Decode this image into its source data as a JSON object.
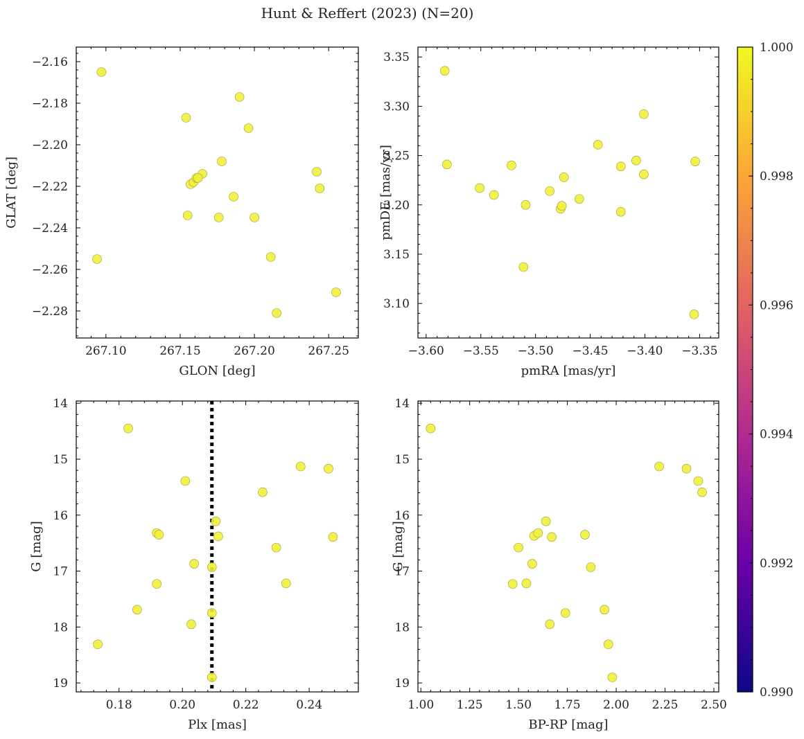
{
  "figure": {
    "title": "Hunt & Reffert (2023) (N=20)",
    "point_color": "#f0f921",
    "colormap": "plasma"
  },
  "colorbar": {
    "range": [
      0.99,
      1.0
    ],
    "ticks": [
      0.99,
      0.992,
      0.994,
      0.996,
      0.998,
      1.0
    ],
    "tick_labels": [
      "0.990",
      "0.992",
      "0.994",
      "0.996",
      "0.998",
      "1.000"
    ],
    "stops": [
      "#0d0887",
      "#6a00a8",
      "#b12a90",
      "#e16462",
      "#fca636",
      "#f0f921"
    ]
  },
  "chart_data": [
    {
      "type": "scatter",
      "id": "p1",
      "xlabel": "GLON [deg]",
      "ylabel": "GLAT [deg]",
      "xlim": [
        267.08,
        267.27
      ],
      "ylim": [
        -2.293,
        -2.153
      ],
      "xticks": [
        267.1,
        267.15,
        267.2,
        267.25
      ],
      "xtick_labels": [
        "267.10",
        "267.15",
        "267.20",
        "267.25"
      ],
      "yticks": [
        -2.28,
        -2.26,
        -2.24,
        -2.22,
        -2.2,
        -2.18,
        -2.16
      ],
      "ytick_labels": [
        "−2.28",
        "−2.26",
        "−2.24",
        "−2.22",
        "−2.20",
        "−2.18",
        "−2.16"
      ],
      "x": [
        267.097,
        267.094,
        267.154,
        267.155,
        267.157,
        267.159,
        267.161,
        267.165,
        267.176,
        267.178,
        267.186,
        267.19,
        267.196,
        267.2,
        267.211,
        267.215,
        267.242,
        267.244,
        267.255,
        267.162
      ],
      "y": [
        -2.165,
        -2.255,
        -2.187,
        -2.234,
        -2.219,
        -2.218,
        -2.216,
        -2.214,
        -2.235,
        -2.208,
        -2.225,
        -2.177,
        -2.192,
        -2.235,
        -2.254,
        -2.281,
        -2.213,
        -2.221,
        -2.271,
        -2.216
      ]
    },
    {
      "type": "scatter",
      "id": "p2",
      "xlabel": "pmRA [mas/yr]",
      "ylabel": "pmDE [mas/yr]",
      "xlim": [
        -3.6075,
        -3.3325
      ],
      "ylim": [
        3.065,
        3.36
      ],
      "xticks": [
        -3.6,
        -3.55,
        -3.5,
        -3.45,
        -3.4,
        -3.35
      ],
      "xtick_labels": [
        "−3.60",
        "−3.55",
        "−3.50",
        "−3.45",
        "−3.40",
        "−3.35"
      ],
      "yticks": [
        3.1,
        3.15,
        3.2,
        3.25,
        3.3,
        3.35
      ],
      "ytick_labels": [
        "3.10",
        "3.15",
        "3.20",
        "3.25",
        "3.30",
        "3.35"
      ],
      "x": [
        -3.583,
        -3.581,
        -3.551,
        -3.538,
        -3.522,
        -3.511,
        -3.509,
        -3.487,
        -3.477,
        -3.476,
        -3.474,
        -3.46,
        -3.443,
        -3.422,
        -3.422,
        -3.408,
        -3.401,
        -3.401,
        -3.355,
        -3.354
      ],
      "y": [
        3.336,
        3.241,
        3.217,
        3.21,
        3.24,
        3.137,
        3.2,
        3.214,
        3.196,
        3.199,
        3.228,
        3.206,
        3.261,
        3.239,
        3.193,
        3.245,
        3.292,
        3.231,
        3.089,
        3.244
      ]
    },
    {
      "type": "scatter",
      "id": "p3",
      "xlabel": "Plx [mas]",
      "ylabel": "G [mag]",
      "xlim": [
        0.1665,
        0.2555
      ],
      "ylim": [
        19.16,
        13.96
      ],
      "xticks": [
        0.18,
        0.2,
        0.22,
        0.24
      ],
      "xtick_labels": [
        "0.18",
        "0.20",
        "0.22",
        "0.24"
      ],
      "yticks": [
        14,
        15,
        16,
        17,
        18,
        19
      ],
      "ytick_labels": [
        "14",
        "15",
        "16",
        "17",
        "18",
        "19"
      ],
      "vline": 0.2093,
      "x": [
        0.1733,
        0.1829,
        0.1857,
        0.1919,
        0.1919,
        0.1926,
        0.2009,
        0.2028,
        0.2037,
        0.2093,
        0.2093,
        0.2093,
        0.2105,
        0.2113,
        0.2253,
        0.2296,
        0.2327,
        0.2373,
        0.2461,
        0.2475
      ],
      "y": [
        18.31,
        14.45,
        17.69,
        16.32,
        17.23,
        16.35,
        15.39,
        17.95,
        16.87,
        16.93,
        17.75,
        18.9,
        16.11,
        16.38,
        15.59,
        16.58,
        17.22,
        15.13,
        15.17,
        16.39
      ]
    },
    {
      "type": "scatter",
      "id": "p4",
      "xlabel": "BP-RP [mag]",
      "ylabel": "G [mag]",
      "xlim": [
        0.985,
        2.525
      ],
      "ylim": [
        19.16,
        13.96
      ],
      "xticks": [
        1.0,
        1.25,
        1.5,
        1.75,
        2.0,
        2.25,
        2.5
      ],
      "xtick_labels": [
        "1.00",
        "1.25",
        "1.50",
        "1.75",
        "2.00",
        "2.25",
        "2.50"
      ],
      "yticks": [
        14,
        15,
        16,
        17,
        18,
        19
      ],
      "ytick_labels": [
        "14",
        "15",
        "16",
        "17",
        "18",
        "19"
      ],
      "x": [
        1.05,
        1.47,
        1.5,
        1.54,
        1.57,
        1.58,
        1.6,
        1.64,
        1.66,
        1.67,
        1.74,
        1.84,
        1.87,
        1.94,
        1.96,
        1.98,
        2.22,
        2.36,
        2.42,
        2.44
      ],
      "y": [
        14.45,
        17.23,
        16.58,
        17.22,
        16.87,
        16.37,
        16.32,
        16.11,
        17.95,
        16.39,
        17.75,
        16.35,
        16.93,
        17.69,
        18.31,
        18.9,
        15.13,
        15.17,
        15.39,
        15.59
      ]
    }
  ]
}
